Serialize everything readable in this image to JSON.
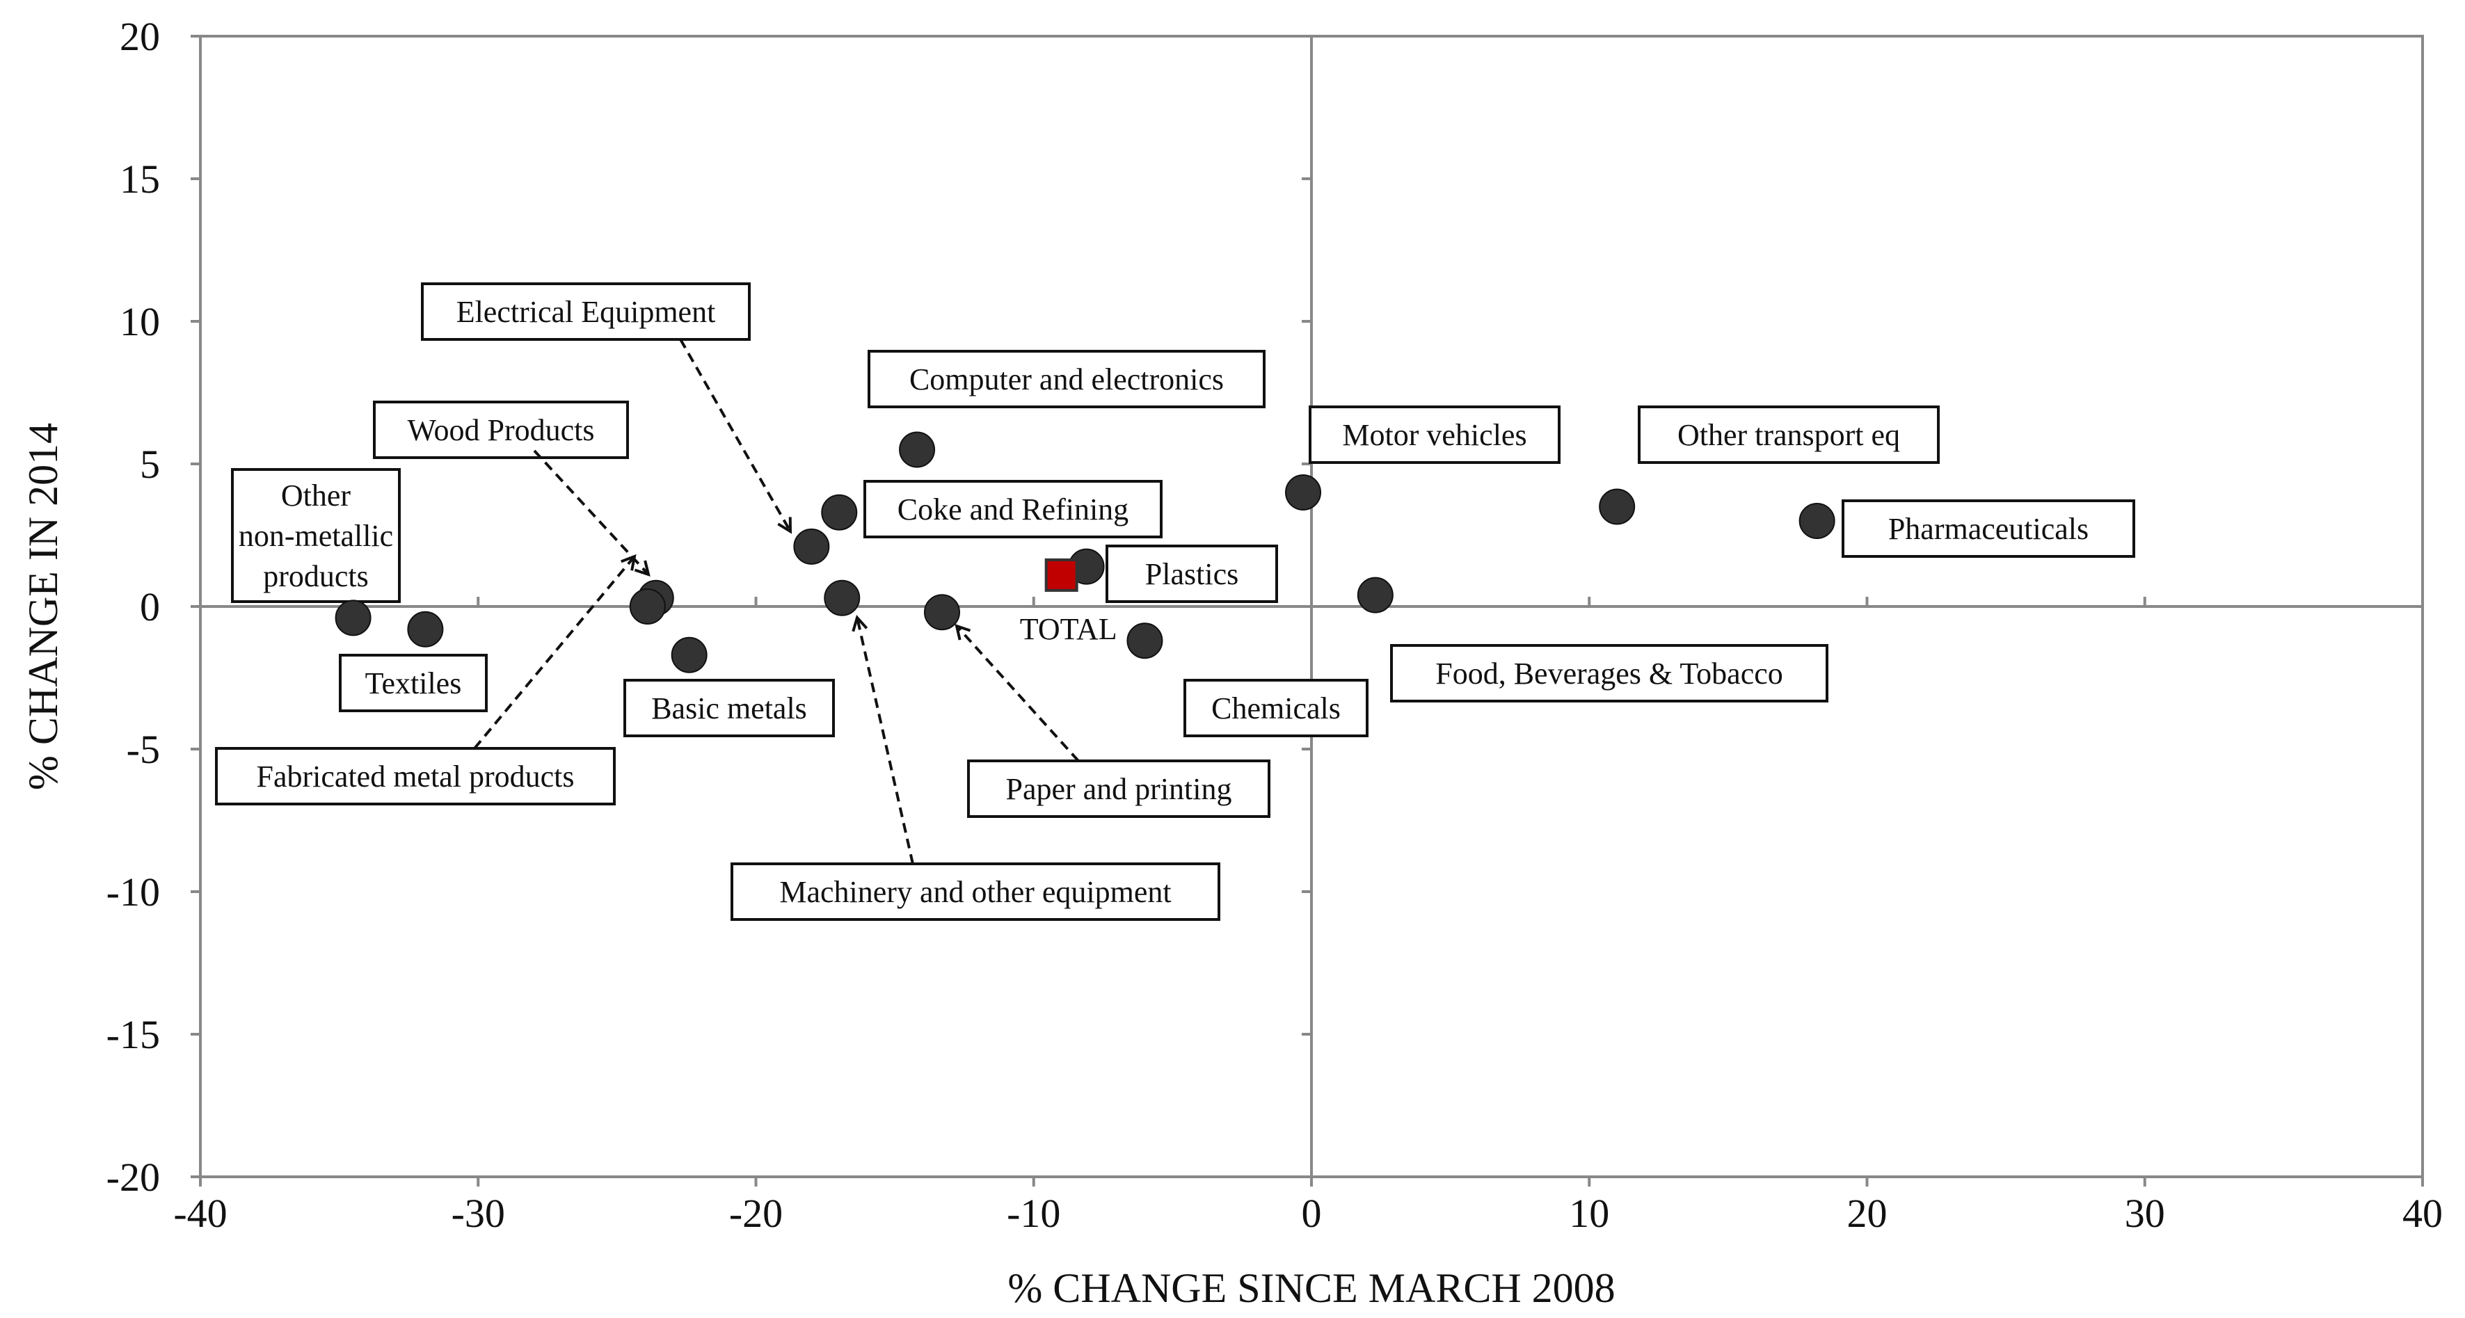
{
  "chart_data": {
    "type": "scatter",
    "title": "",
    "xlabel": "% CHANGE SINCE MARCH 2008",
    "ylabel": "% CHANGE IN 2014",
    "xlim": [
      -40,
      40
    ],
    "ylim": [
      -20,
      20
    ],
    "x_ticks": [
      -40,
      -30,
      -20,
      -10,
      0,
      10,
      20,
      30,
      40
    ],
    "y_ticks": [
      -20,
      -15,
      -10,
      -5,
      0,
      5,
      10,
      15,
      20
    ],
    "grid": false,
    "legend": "none",
    "colors": {
      "point": "#333333",
      "total": "#c00000",
      "axis": "#888888"
    },
    "points": [
      {
        "label": "Other non-metallic products",
        "lines": [
          "Other",
          "non-metallic",
          "products"
        ],
        "x": -34.5,
        "y": -0.4
      },
      {
        "label": "Textiles",
        "lines": [
          "Textiles"
        ],
        "x": -31.9,
        "y": -0.8
      },
      {
        "label": "Wood Products",
        "lines": [
          "Wood Products"
        ],
        "x": -23.6,
        "y": 0.3
      },
      {
        "label": "Fabricated metal products",
        "lines": [
          "Fabricated metal products"
        ],
        "x": -23.9,
        "y": 0.0
      },
      {
        "label": "Basic metals",
        "lines": [
          "Basic metals"
        ],
        "x": -22.4,
        "y": -1.7
      },
      {
        "label": "Electrical Equipment",
        "lines": [
          "Electrical Equipment"
        ],
        "x": -18.0,
        "y": 2.1
      },
      {
        "label": "Computer and electronics",
        "lines": [
          "Computer and electronics"
        ],
        "x": -14.2,
        "y": 5.5
      },
      {
        "label": "Coke and Refining",
        "lines": [
          "Coke and Refining"
        ],
        "x": -17.0,
        "y": 3.3
      },
      {
        "label": "Machinery and other equipment",
        "lines": [
          "Machinery and other equipment"
        ],
        "x": -16.9,
        "y": 0.3
      },
      {
        "label": "Paper and printing",
        "lines": [
          "Paper and printing"
        ],
        "x": -13.3,
        "y": -0.2
      },
      {
        "label": "Plastics",
        "lines": [
          "Plastics"
        ],
        "x": -8.1,
        "y": 1.4
      },
      {
        "label": "Chemicals",
        "lines": [
          "Chemicals"
        ],
        "x": -6.0,
        "y": -1.2
      },
      {
        "label": "Motor vehicles",
        "lines": [
          "Motor vehicles"
        ],
        "x": -0.3,
        "y": 4.0
      },
      {
        "label": "Food, Beverages & Tobacco",
        "lines": [
          "Food, Beverages & Tobacco"
        ],
        "x": 2.3,
        "y": 0.4
      },
      {
        "label": "Other transport eq",
        "lines": [
          "Other transport eq"
        ],
        "x": 11.0,
        "y": 3.5
      },
      {
        "label": "Pharmaceuticals",
        "lines": [
          "Pharmaceuticals"
        ],
        "x": 18.2,
        "y": 3.0
      }
    ],
    "total": {
      "label": "TOTAL",
      "x": -9.0,
      "y": 1.1
    }
  }
}
